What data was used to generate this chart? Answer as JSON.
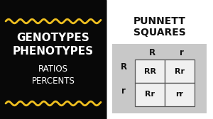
{
  "bg_left": "#080808",
  "bg_right": "#ffffff",
  "title_right": "PUNNETT\nSQUARES",
  "left_text1": "GENOTYPES\nPHENOTYPES",
  "left_text2": "RATIOS\nPERCENTS",
  "wave_color": "#f0c020",
  "text_color_white": "#ffffff",
  "text_color_dark": "#111111",
  "grid_labels_col": [
    "R",
    "r"
  ],
  "grid_labels_row": [
    "R",
    "r"
  ],
  "grid_cells": [
    [
      "RR",
      "Rr"
    ],
    [
      "Rr",
      "rr"
    ]
  ],
  "inner_bg": "#c8c8c8",
  "cell_bg": "#f0f0f0",
  "cell_border": "#555555"
}
